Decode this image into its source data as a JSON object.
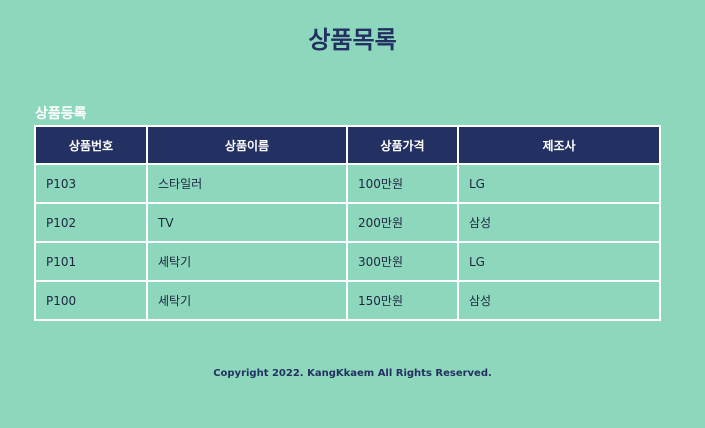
{
  "page": {
    "title": "상품목록"
  },
  "actions": {
    "register_label": "상품등록"
  },
  "table": {
    "headers": [
      "상품번호",
      "상품이름",
      "상품가격",
      "제조사"
    ],
    "rows": [
      [
        "P103",
        "스타일러",
        "100만원",
        "LG"
      ],
      [
        "P102",
        "TV",
        "200만원",
        "삼성"
      ],
      [
        "P101",
        "세탁기",
        "300만원",
        "LG"
      ],
      [
        "P100",
        "세탁기",
        "150만원",
        "삼성"
      ]
    ]
  },
  "footer": {
    "copyright": "Copyright 2022. KangKkaem All Rights Reserved."
  },
  "colors": {
    "background": "#8dd7bc",
    "header_bg": "#233162",
    "text_dark": "#233162"
  }
}
